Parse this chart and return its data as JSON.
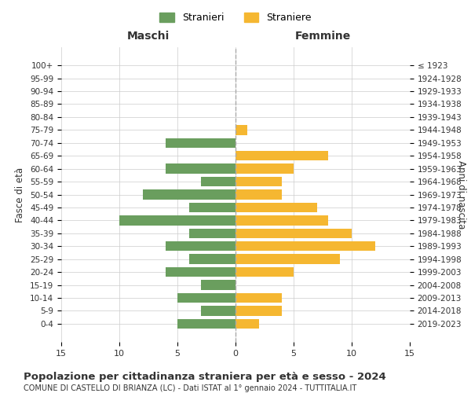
{
  "age_groups": [
    "0-4",
    "5-9",
    "10-14",
    "15-19",
    "20-24",
    "25-29",
    "30-34",
    "35-39",
    "40-44",
    "45-49",
    "50-54",
    "55-59",
    "60-64",
    "65-69",
    "70-74",
    "75-79",
    "80-84",
    "85-89",
    "90-94",
    "95-99",
    "100+"
  ],
  "birth_years": [
    "2019-2023",
    "2014-2018",
    "2009-2013",
    "2004-2008",
    "1999-2003",
    "1994-1998",
    "1989-1993",
    "1984-1988",
    "1979-1983",
    "1974-1978",
    "1969-1973",
    "1964-1968",
    "1959-1963",
    "1954-1958",
    "1949-1953",
    "1944-1948",
    "1939-1943",
    "1934-1938",
    "1929-1933",
    "1924-1928",
    "≤ 1923"
  ],
  "males": [
    5,
    3,
    5,
    3,
    6,
    4,
    6,
    4,
    10,
    4,
    8,
    3,
    6,
    0,
    6,
    0,
    0,
    0,
    0,
    0,
    0
  ],
  "females": [
    2,
    4,
    4,
    0,
    5,
    9,
    12,
    10,
    8,
    7,
    4,
    4,
    5,
    8,
    0,
    1,
    0,
    0,
    0,
    0,
    0
  ],
  "male_color": "#6a9e5e",
  "female_color": "#f5b731",
  "title": "Popolazione per cittadinanza straniera per età e sesso - 2024",
  "subtitle": "COMUNE DI CASTELLO DI BRIANZA (LC) - Dati ISTAT al 1° gennaio 2024 - TUTTITALIA.IT",
  "xlabel_left": "Maschi",
  "xlabel_right": "Femmine",
  "ylabel_left": "Fasce di età",
  "ylabel_right": "Anni di nascita",
  "legend_male": "Stranieri",
  "legend_female": "Straniere",
  "xlim": 15,
  "background_color": "#ffffff",
  "grid_color": "#cccccc",
  "axis_text_color": "#333333",
  "dashed_line_color": "#aaaaaa"
}
